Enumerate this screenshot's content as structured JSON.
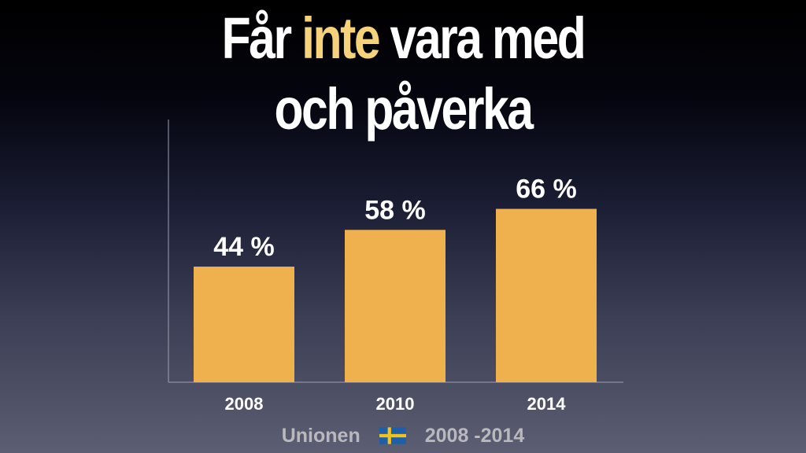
{
  "title": {
    "line1_part1": "Får",
    "line1_highlight": "inte",
    "line1_part2": "vara med",
    "line2": "och påverka",
    "highlight_color": "#f6d27a"
  },
  "chart_data": {
    "type": "bar",
    "categories": [
      "2008",
      "2010",
      "2014"
    ],
    "values": [
      44,
      58,
      66
    ],
    "value_labels": [
      "44 %",
      "58 %",
      "66 %"
    ],
    "unit": "%",
    "ylim": [
      0,
      100
    ],
    "bar_color": "#eeb14e",
    "grid": false
  },
  "footer": {
    "source": "Unionen",
    "flag_icon": "swedish-flag-icon",
    "period": "2008 -2014"
  }
}
